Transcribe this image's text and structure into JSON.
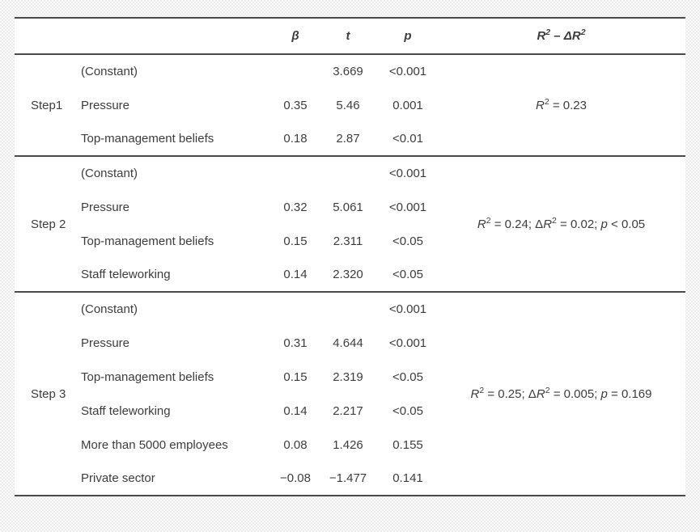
{
  "colors": {
    "rule_color": "#4a4a4a",
    "text_color": "#3d3d3d",
    "table_bg": "#ffffff",
    "page_bg": "#f3f3f3"
  },
  "table": {
    "headers": {
      "step": "",
      "variable": "",
      "beta": "β",
      "t": "t",
      "p": "p",
      "r2_segments": [
        {
          "t": "R",
          "s": "i"
        },
        {
          "t": "2",
          "s": "sup"
        },
        {
          "t": " – Δ",
          "s": ""
        },
        {
          "t": "R",
          "s": "i"
        },
        {
          "t": "2",
          "s": "sup"
        }
      ]
    },
    "groups": [
      {
        "step": "Step1",
        "rows": [
          {
            "variable": "(Constant)",
            "beta": "",
            "t": "3.669",
            "p": "<0.001"
          },
          {
            "variable": "Pressure",
            "beta": "0.35",
            "t": "5.46",
            "p": "0.001"
          },
          {
            "variable": "Top-management beliefs",
            "beta": "0.18",
            "t": "2.87",
            "p": "<0.01"
          }
        ],
        "r2_segments": [
          {
            "t": "R",
            "s": "i"
          },
          {
            "t": "2",
            "s": "sup"
          },
          {
            "t": " = 0.23",
            "s": ""
          }
        ]
      },
      {
        "step": "Step 2",
        "rows": [
          {
            "variable": "(Constant)",
            "beta": "",
            "t": "",
            "p": "<0.001"
          },
          {
            "variable": "Pressure",
            "beta": "0.32",
            "t": "5.061",
            "p": "<0.001"
          },
          {
            "variable": "Top-management beliefs",
            "beta": "0.15",
            "t": "2.311",
            "p": "<0.05"
          },
          {
            "variable": "Staff teleworking",
            "beta": "0.14",
            "t": "2.320",
            "p": "<0.05"
          }
        ],
        "r2_segments": [
          {
            "t": "R",
            "s": "i"
          },
          {
            "t": "2",
            "s": "sup"
          },
          {
            "t": " = 0.24; Δ",
            "s": ""
          },
          {
            "t": "R",
            "s": "i"
          },
          {
            "t": "2",
            "s": "sup"
          },
          {
            "t": " = 0.02; ",
            "s": ""
          },
          {
            "t": "p",
            "s": "i"
          },
          {
            "t": " < 0.05",
            "s": ""
          }
        ]
      },
      {
        "step": "Step 3",
        "rows": [
          {
            "variable": "(Constant)",
            "beta": "",
            "t": "",
            "p": "<0.001"
          },
          {
            "variable": "Pressure",
            "beta": "0.31",
            "t": "4.644",
            "p": "<0.001"
          },
          {
            "variable": "Top-management beliefs",
            "beta": "0.15",
            "t": "2.319",
            "p": "<0.05"
          },
          {
            "variable": "Staff teleworking",
            "beta": "0.14",
            "t": "2.217",
            "p": "<0.05"
          },
          {
            "variable": "More than 5000 employees",
            "beta": "0.08",
            "t": "1.426",
            "p": "0.155"
          },
          {
            "variable": "Private sector",
            "beta": "−0.08",
            "t": "−1.477",
            "p": "0.141"
          }
        ],
        "r2_segments": [
          {
            "t": "R",
            "s": "i"
          },
          {
            "t": "2",
            "s": "sup"
          },
          {
            "t": " = 0.25; Δ",
            "s": ""
          },
          {
            "t": "R",
            "s": "i"
          },
          {
            "t": "2",
            "s": "sup"
          },
          {
            "t": " = 0.005; ",
            "s": ""
          },
          {
            "t": "p",
            "s": "i"
          },
          {
            "t": " = 0.169",
            "s": ""
          }
        ]
      }
    ]
  }
}
